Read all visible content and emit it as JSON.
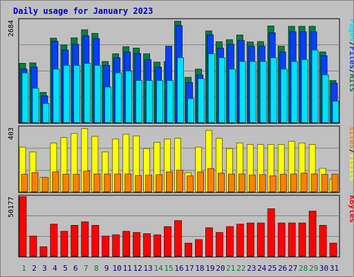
{
  "chart_data": {
    "type": "bar",
    "title": "Daily usage for January 2023",
    "days": [
      "1",
      "2",
      "3",
      "4",
      "5",
      "6",
      "7",
      "8",
      "9",
      "10",
      "11",
      "12",
      "13",
      "14",
      "15",
      "16",
      "17",
      "18",
      "19",
      "20",
      "21",
      "22",
      "23",
      "24",
      "25",
      "26",
      "27",
      "28",
      "29",
      "30",
      "31"
    ],
    "weekend_days": [
      "1",
      "7",
      "8",
      "14",
      "15",
      "21",
      "22",
      "28",
      "29"
    ],
    "colors": {
      "hits": "#008040",
      "files": "#0040ff",
      "pages": "#00e0ff",
      "visits": "#ffff00",
      "sites": "#ff8000",
      "kbytes": "#ff0000",
      "weekday_label": "#000080",
      "weekend_label": "#008040"
    },
    "panels": [
      {
        "id": "hits-files-pages",
        "max_label": "2684",
        "ymax": 2684,
        "legend": [
          {
            "text": "Pages",
            "color": "#00e0ff"
          },
          {
            "text": "/",
            "color": "#000000"
          },
          {
            "text": "Files",
            "color": "#0040ff"
          },
          {
            "text": "/",
            "color": "#000000"
          },
          {
            "text": "Hits",
            "color": "#008040"
          }
        ],
        "series": [
          {
            "key": "hits",
            "values": [
              1552,
              1564,
              790,
              2211,
              2035,
              2218,
              2430,
              2335,
              1600,
              1800,
              1986,
              1952,
              1800,
              1583,
              1600,
              2655,
              1185,
              1400,
              2400,
              2117,
              2170,
              2292,
              2113,
              2121,
              2530,
              2000,
              2520,
              2520,
              2520,
              1850,
              1100
            ]
          },
          {
            "key": "files",
            "values": [
              1400,
              1450,
              700,
              2130,
              1900,
              2050,
              2270,
              2200,
              1500,
              1700,
              1850,
              1810,
              1650,
              1450,
              2000,
              2540,
              1050,
              1250,
              2300,
              1950,
              2050,
              2150,
              2000,
              2000,
              2350,
              1850,
              2380,
              2380,
              2380,
              1750,
              1030
            ]
          },
          {
            "key": "pages",
            "values": [
              1300,
              900,
              500,
              1400,
              1500,
              1500,
              1550,
              1500,
              930,
              1300,
              1350,
              1100,
              1100,
              1100,
              1100,
              1700,
              630,
              1150,
              1800,
              1700,
              1400,
              1600,
              1600,
              1600,
              1700,
              1400,
              1600,
              1650,
              1900,
              1250,
              560
            ]
          }
        ]
      },
      {
        "id": "visits-sites",
        "max_label": "403",
        "ymax": 403,
        "legend": [
          {
            "text": "Sites",
            "color": "#ff8000"
          },
          {
            "text": "/",
            "color": "#000000"
          },
          {
            "text": "Visits",
            "color": "#ffff00"
          }
        ],
        "series": [
          {
            "key": "visits",
            "values": [
              280,
              250,
              90,
              305,
              340,
              365,
              395,
              347,
              250,
              330,
              360,
              350,
              270,
              310,
              330,
              335,
              120,
              280,
              385,
              335,
              270,
              306,
              296,
              296,
              296,
              296,
              316,
              306,
              296,
              147,
              80
            ]
          },
          {
            "key": "sites",
            "values": [
              110,
              120,
              90,
              125,
              110,
              110,
              130,
              112,
              112,
              112,
              112,
              102,
              105,
              108,
              125,
              135,
              100,
              125,
              145,
              117,
              112,
              112,
              105,
              108,
              100,
              110,
              112,
              117,
              112,
              109,
              110
            ]
          }
        ]
      },
      {
        "id": "kbytes",
        "max_label": "50177",
        "ymax": 50177,
        "legend": [
          {
            "text": "KBytes",
            "color": "#ff0000"
          }
        ],
        "series": [
          {
            "key": "kbytes",
            "values": [
              50177,
              17000,
              8000,
              27000,
              21000,
              26000,
              29000,
              26000,
              17000,
              18000,
              21000,
              20000,
              19000,
              18000,
              25000,
              30000,
              11000,
              14000,
              24000,
              20000,
              25000,
              27000,
              28000,
              28000,
              40000,
              28000,
              28000,
              28000,
              38000,
              26000,
              11000
            ]
          }
        ]
      }
    ]
  }
}
